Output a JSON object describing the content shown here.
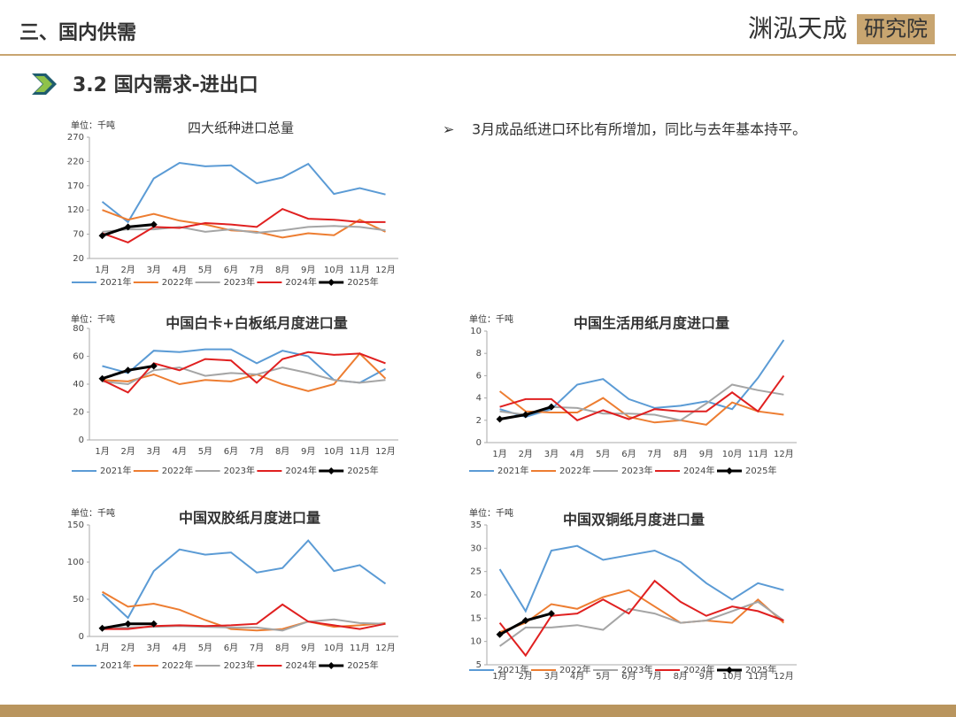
{
  "header": {
    "section": "三、国内供需",
    "logo_main": "渊泓天成",
    "logo_box": "研究院",
    "subtitle": "3.2 国内需求-进出口",
    "bullet": "3月成品纸进口环比有所增加，同比与去年基本持平。"
  },
  "chart_data": [
    {
      "type": "line",
      "title": "四大纸种进口总量",
      "unit": "单位：千吨",
      "categories": [
        "1月",
        "2月",
        "3月",
        "4月",
        "5月",
        "6月",
        "7月",
        "8月",
        "9月",
        "10月",
        "11月",
        "12月"
      ],
      "ylim": [
        20,
        270
      ],
      "yticks": [
        20,
        70,
        120,
        170,
        220,
        270
      ],
      "series": [
        {
          "name": "2021年",
          "color": "#5b9bd5",
          "values": [
            137,
            95,
            185,
            217,
            210,
            212,
            175,
            187,
            215,
            153,
            165,
            152
          ]
        },
        {
          "name": "2022年",
          "color": "#ed7d31",
          "values": [
            120,
            100,
            112,
            98,
            90,
            78,
            75,
            63,
            72,
            68,
            100,
            75
          ]
        },
        {
          "name": "2023年",
          "color": "#a5a5a5",
          "values": [
            75,
            80,
            80,
            85,
            75,
            80,
            73,
            78,
            85,
            87,
            85,
            78
          ]
        },
        {
          "name": "2024年",
          "color": "#e02020",
          "values": [
            72,
            53,
            85,
            83,
            93,
            90,
            85,
            122,
            102,
            100,
            95,
            95
          ]
        },
        {
          "name": "2025年",
          "color": "#000000",
          "marker": "diamond",
          "values": [
            67,
            85,
            90,
            null,
            null,
            null,
            null,
            null,
            null,
            null,
            null,
            null
          ]
        }
      ]
    },
    {
      "type": "line",
      "title": "中国白卡+白板纸月度进口量",
      "unit": "单位：千吨",
      "categories": [
        "1月",
        "2月",
        "3月",
        "4月",
        "5月",
        "6月",
        "7月",
        "8月",
        "9月",
        "10月",
        "11月",
        "12月"
      ],
      "ylim": [
        0,
        80
      ],
      "yticks": [
        0,
        20,
        40,
        60,
        80
      ],
      "series": [
        {
          "name": "2021年",
          "color": "#5b9bd5",
          "values": [
            53,
            48,
            64,
            63,
            65,
            65,
            55,
            64,
            60,
            43,
            41,
            51
          ]
        },
        {
          "name": "2022年",
          "color": "#ed7d31",
          "values": [
            43,
            42,
            47,
            40,
            43,
            42,
            47,
            40,
            35,
            40,
            62,
            44
          ]
        },
        {
          "name": "2023年",
          "color": "#a5a5a5",
          "values": [
            42,
            40,
            50,
            52,
            46,
            48,
            47,
            52,
            48,
            43,
            41,
            43
          ]
        },
        {
          "name": "2024年",
          "color": "#e02020",
          "values": [
            43,
            34,
            55,
            50,
            58,
            57,
            41,
            58,
            63,
            61,
            62,
            55
          ]
        },
        {
          "name": "2025年",
          "color": "#000000",
          "marker": "diamond",
          "values": [
            44,
            50,
            53,
            null,
            null,
            null,
            null,
            null,
            null,
            null,
            null,
            null
          ]
        }
      ]
    },
    {
      "type": "line",
      "title": "中国生活用纸月度进口量",
      "unit": "单位：千吨",
      "categories": [
        "1月",
        "2月",
        "3月",
        "4月",
        "5月",
        "6月",
        "7月",
        "8月",
        "9月",
        "10月",
        "11月",
        "12月"
      ],
      "ylim": [
        0,
        10
      ],
      "yticks": [
        0,
        2,
        4,
        6,
        8,
        10
      ],
      "series": [
        {
          "name": "2021年",
          "color": "#5b9bd5",
          "values": [
            3.0,
            2.3,
            3.0,
            5.2,
            5.7,
            3.9,
            3.1,
            3.3,
            3.7,
            3.0,
            5.8,
            9.2
          ]
        },
        {
          "name": "2022年",
          "color": "#ed7d31",
          "values": [
            4.6,
            2.8,
            2.7,
            2.7,
            4.0,
            2.3,
            1.8,
            2.0,
            1.6,
            3.6,
            2.8,
            2.5
          ]
        },
        {
          "name": "2023年",
          "color": "#a5a5a5",
          "values": [
            2.8,
            2.5,
            3.2,
            3.1,
            2.6,
            2.6,
            2.5,
            2.0,
            3.5,
            5.2,
            4.7,
            4.3
          ]
        },
        {
          "name": "2024年",
          "color": "#e02020",
          "values": [
            3.2,
            3.9,
            3.9,
            2.0,
            2.9,
            2.1,
            3.0,
            2.8,
            2.8,
            4.5,
            2.8,
            6.0
          ]
        },
        {
          "name": "2025年",
          "color": "#000000",
          "marker": "diamond",
          "values": [
            2.1,
            2.5,
            3.2,
            null,
            null,
            null,
            null,
            null,
            null,
            null,
            null,
            null
          ]
        }
      ]
    },
    {
      "type": "line",
      "title": "中国双胶纸月度进口量",
      "unit": "单位：千吨",
      "categories": [
        "1月",
        "2月",
        "3月",
        "4月",
        "5月",
        "6月",
        "7月",
        "8月",
        "9月",
        "10月",
        "11月",
        "12月"
      ],
      "ylim": [
        0,
        150
      ],
      "yticks": [
        0,
        50,
        100,
        150
      ],
      "series": [
        {
          "name": "2021年",
          "color": "#5b9bd5",
          "values": [
            57,
            25,
            88,
            117,
            110,
            113,
            86,
            92,
            129,
            88,
            96,
            71
          ]
        },
        {
          "name": "2022年",
          "color": "#ed7d31",
          "values": [
            60,
            40,
            44,
            36,
            22,
            10,
            8,
            10,
            20,
            13,
            15,
            18
          ]
        },
        {
          "name": "2023年",
          "color": "#a5a5a5",
          "values": [
            12,
            12,
            13,
            14,
            13,
            12,
            12,
            8,
            20,
            23,
            18,
            17
          ]
        },
        {
          "name": "2024年",
          "color": "#e02020",
          "values": [
            10,
            10,
            14,
            15,
            14,
            15,
            17,
            43,
            20,
            15,
            10,
            17
          ]
        },
        {
          "name": "2025年",
          "color": "#000000",
          "marker": "diamond",
          "values": [
            11,
            17,
            17,
            null,
            null,
            null,
            null,
            null,
            null,
            null,
            null,
            null
          ]
        }
      ]
    },
    {
      "type": "line",
      "title": "中国双铜纸月度进口量",
      "unit": "单位：千吨",
      "categories": [
        "1月",
        "2月",
        "3月",
        "4月",
        "5月",
        "6月",
        "7月",
        "8月",
        "9月",
        "10月",
        "11月",
        "12月"
      ],
      "ylim": [
        5,
        35
      ],
      "yticks": [
        5,
        10,
        15,
        20,
        25,
        30,
        35
      ],
      "series": [
        {
          "name": "2021年",
          "color": "#5b9bd5",
          "values": [
            25.5,
            16.5,
            29.5,
            30.5,
            27.5,
            28.5,
            29.5,
            27,
            22.5,
            19,
            22.5,
            21
          ]
        },
        {
          "name": "2022年",
          "color": "#ed7d31",
          "values": [
            12,
            14,
            18,
            17,
            19.5,
            21,
            17.5,
            14,
            14.5,
            14,
            19,
            14
          ]
        },
        {
          "name": "2023年",
          "color": "#a5a5a5",
          "values": [
            9,
            13,
            13,
            13.5,
            12.5,
            17,
            16,
            14,
            14.5,
            16.5,
            18.5,
            14.5
          ]
        },
        {
          "name": "2024年",
          "color": "#e02020",
          "values": [
            14,
            7,
            15.5,
            16,
            19,
            16,
            23,
            18.5,
            15.5,
            17.5,
            16.5,
            14.5
          ]
        },
        {
          "name": "2025年",
          "color": "#000000",
          "marker": "diamond",
          "values": [
            11.5,
            14.5,
            16,
            null,
            null,
            null,
            null,
            null,
            null,
            null,
            null,
            null
          ]
        }
      ]
    }
  ]
}
